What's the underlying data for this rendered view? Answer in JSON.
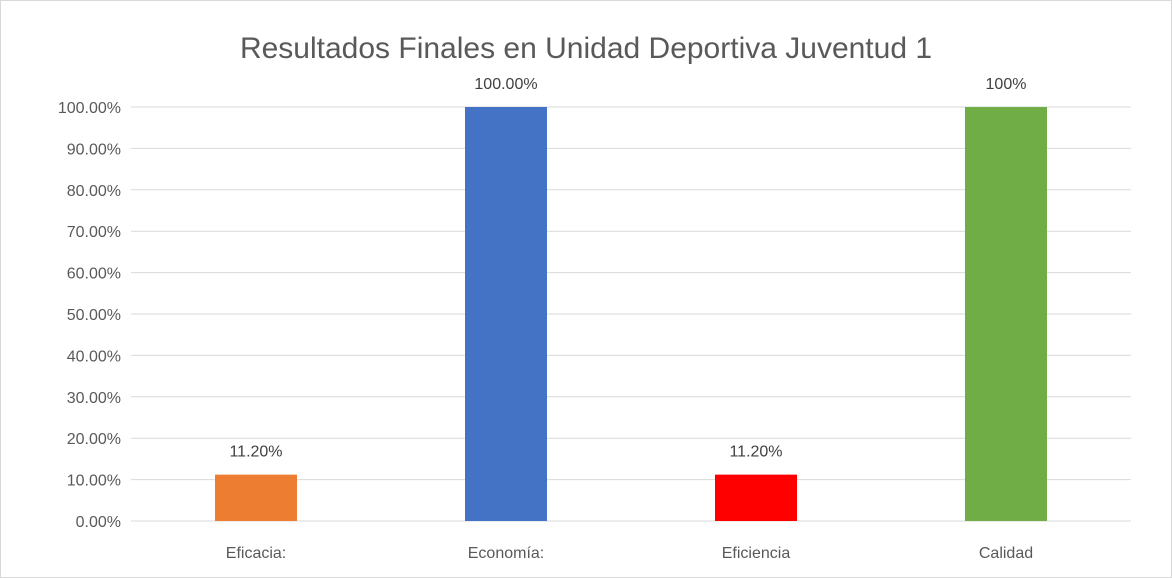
{
  "chart_data": {
    "type": "bar",
    "title": "Resultados Finales en Unidad Deportiva Juventud 1",
    "xlabel": "",
    "ylabel": "",
    "categories": [
      "Eficacia:",
      "Economía:",
      "Eficiencia",
      "Calidad"
    ],
    "values": [
      11.2,
      100,
      11.2,
      100
    ],
    "data_labels": [
      "11.20%",
      "100.00%",
      "11.20%",
      "100%"
    ],
    "bar_colors": [
      "#ed7d31",
      "#4472c4",
      "#ff0000",
      "#70ad47"
    ],
    "ylim": [
      0,
      100
    ],
    "y_ticks": [
      0,
      10,
      20,
      30,
      40,
      50,
      60,
      70,
      80,
      90,
      100
    ],
    "y_tick_labels": [
      "0.00%",
      "10.00%",
      "20.00%",
      "30.00%",
      "40.00%",
      "50.00%",
      "60.00%",
      "70.00%",
      "80.00%",
      "90.00%",
      "100.00%"
    ],
    "grid": true,
    "legend": "none",
    "gridline_color": "#d9d9d9",
    "text_color": "#595959"
  }
}
